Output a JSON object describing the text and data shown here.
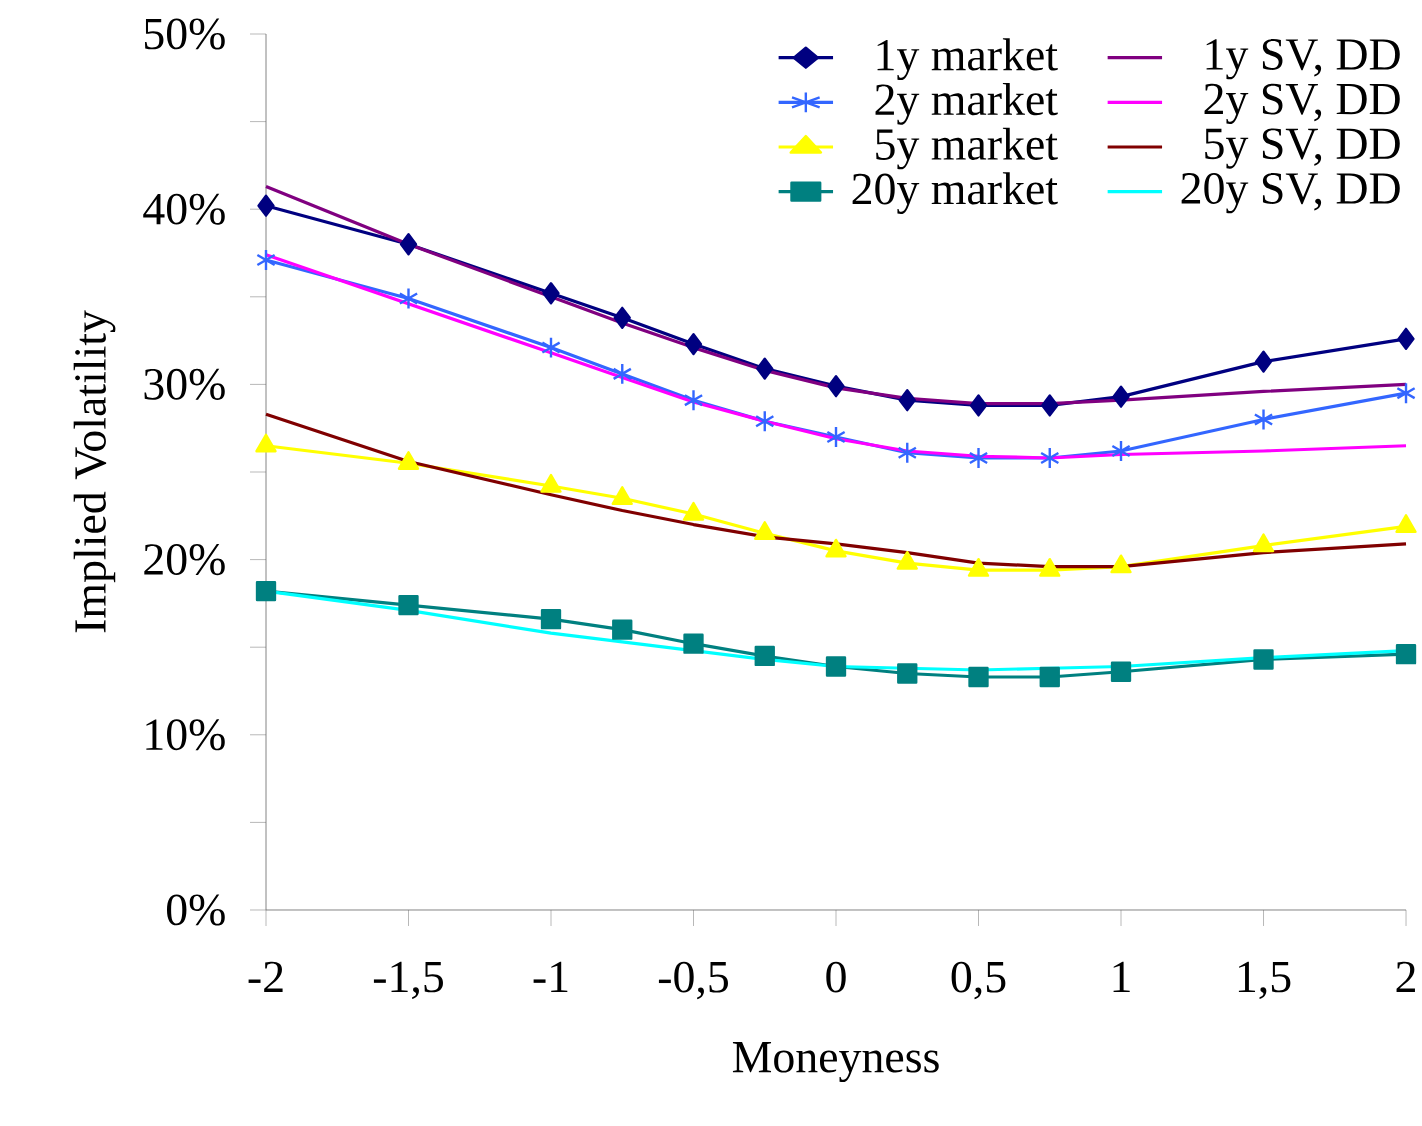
{
  "chart_data": {
    "type": "line",
    "xlabel": "Moneyness",
    "ylabel": "Implied Volatility",
    "x": [
      -2,
      -1.5,
      -1,
      -0.75,
      -0.5,
      -0.25,
      0,
      0.25,
      0.5,
      0.75,
      1,
      1.5,
      2
    ],
    "xlim": [
      -2,
      2
    ],
    "xticks": [
      {
        "value": -2,
        "label": "-2"
      },
      {
        "value": -1.5,
        "label": "-1,5"
      },
      {
        "value": -1,
        "label": "-1"
      },
      {
        "value": -0.5,
        "label": "-0,5"
      },
      {
        "value": 0,
        "label": "0"
      },
      {
        "value": 0.5,
        "label": "0,5"
      },
      {
        "value": 1,
        "label": "1"
      },
      {
        "value": 1.5,
        "label": "1,5"
      },
      {
        "value": 2,
        "label": "2"
      }
    ],
    "ylim": [
      0,
      50
    ],
    "yticks": [
      {
        "value": 0,
        "label": "0%"
      },
      {
        "value": 5,
        "label": null
      },
      {
        "value": 10,
        "label": "10%"
      },
      {
        "value": 15,
        "label": null
      },
      {
        "value": 20,
        "label": "20%"
      },
      {
        "value": 25,
        "label": null
      },
      {
        "value": 30,
        "label": "30%"
      },
      {
        "value": 35,
        "label": null
      },
      {
        "value": 40,
        "label": "40%"
      },
      {
        "value": 45,
        "label": null
      },
      {
        "value": 50,
        "label": "50%"
      }
    ],
    "legend": "top right",
    "series": [
      {
        "name": "1y market",
        "color": "#000080",
        "marker": "diamond",
        "values": [
          40.2,
          38.0,
          35.2,
          33.8,
          32.3,
          30.9,
          29.9,
          29.1,
          28.8,
          28.8,
          29.3,
          31.3,
          32.6
        ]
      },
      {
        "name": "1y SV, DD",
        "color": "#800080",
        "marker": "none",
        "values": [
          41.3,
          38.0,
          35.0,
          33.5,
          32.1,
          30.8,
          29.8,
          29.2,
          28.9,
          28.9,
          29.1,
          29.6,
          30.0
        ]
      },
      {
        "name": "2y market",
        "color": "#3366ff",
        "marker": "cross",
        "values": [
          37.1,
          34.9,
          32.1,
          30.6,
          29.1,
          27.9,
          27.0,
          26.1,
          25.8,
          25.8,
          26.2,
          28.0,
          29.5
        ]
      },
      {
        "name": "2y SV, DD",
        "color": "#ff00ff",
        "marker": "none",
        "values": [
          37.4,
          34.6,
          31.8,
          30.4,
          29.0,
          27.9,
          26.9,
          26.2,
          25.9,
          25.8,
          26.0,
          26.2,
          26.5
        ]
      },
      {
        "name": "5y market",
        "color": "#ffff00",
        "marker": "triangle",
        "values": [
          26.5,
          25.5,
          24.2,
          23.5,
          22.6,
          21.5,
          20.5,
          19.8,
          19.4,
          19.4,
          19.6,
          20.8,
          21.9
        ]
      },
      {
        "name": "5y SV, DD",
        "color": "#800000",
        "marker": "none",
        "values": [
          28.3,
          25.6,
          23.7,
          22.8,
          22.0,
          21.3,
          20.9,
          20.4,
          19.8,
          19.6,
          19.6,
          20.4,
          20.9
        ]
      },
      {
        "name": "20y market",
        "color": "#008080",
        "marker": "square",
        "values": [
          18.2,
          17.4,
          16.6,
          16.0,
          15.2,
          14.5,
          13.9,
          13.5,
          13.3,
          13.3,
          13.6,
          14.3,
          14.6
        ]
      },
      {
        "name": "20y SV, DD",
        "color": "#00ffff",
        "marker": "none",
        "values": [
          18.2,
          17.1,
          15.8,
          15.3,
          14.8,
          14.3,
          13.9,
          13.8,
          13.7,
          13.8,
          13.9,
          14.4,
          14.8
        ]
      }
    ]
  }
}
